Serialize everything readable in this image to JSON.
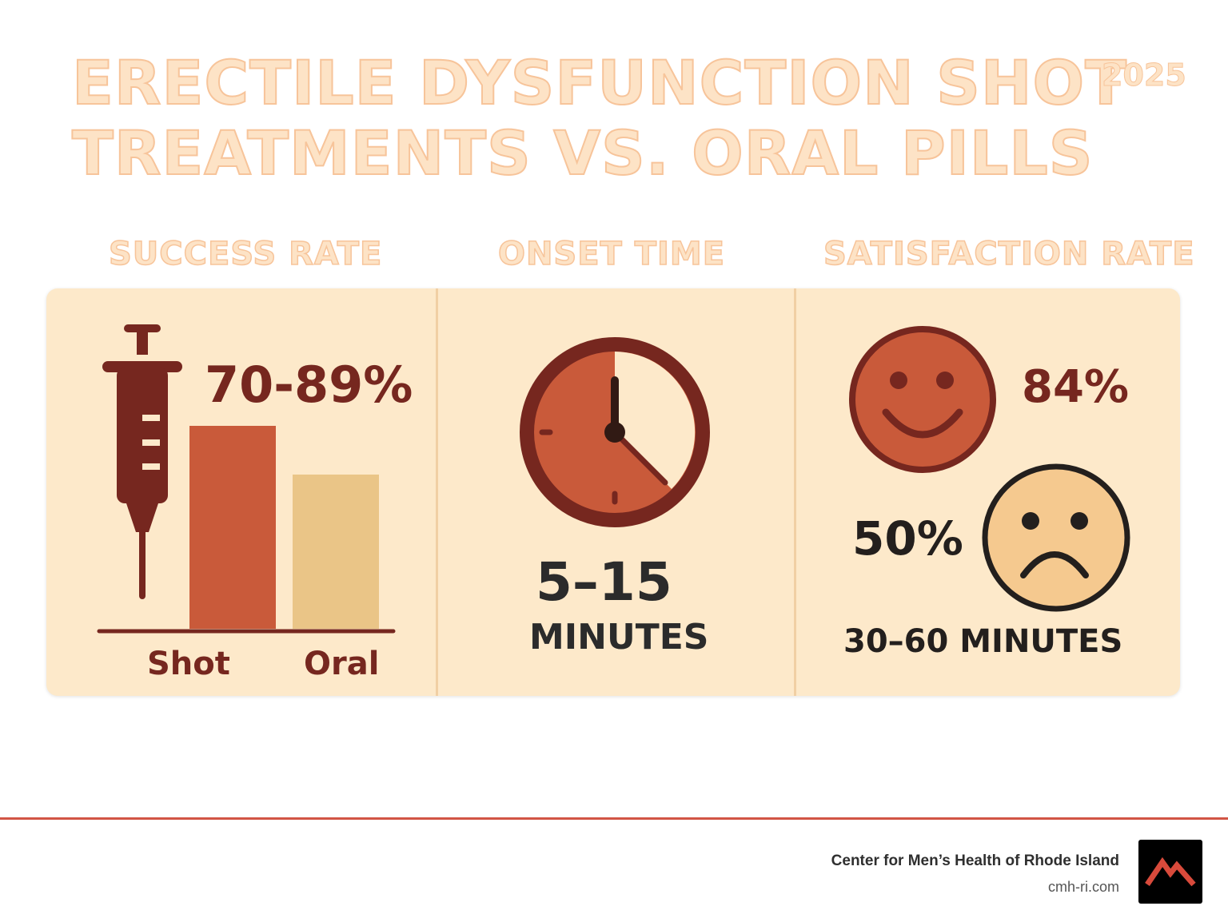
{
  "title": {
    "line1": "ERECTILE DYSFUNCTION SHOT",
    "line2": "TREATMENTS VS. ORAL PILLS",
    "year": "2025"
  },
  "sections": {
    "success": {
      "heading": "SUCCESS RATE",
      "value": "70-89%",
      "bars": [
        {
          "label": "Shot",
          "level": 1.0,
          "color": "#c95a3a"
        },
        {
          "label": "Oral",
          "level": 0.76,
          "color": "#eac587"
        }
      ]
    },
    "onset": {
      "heading": "ONSET TIME",
      "value": "5–15",
      "unit": "MINUTES",
      "icon": "clock-icon"
    },
    "satisfaction": {
      "heading": "SATISFACTION RATE",
      "happy_value": "84%",
      "sad_value": "50%",
      "oral_onset": "30–60 MINUTES",
      "icons": [
        "happy-face-icon",
        "sad-face-icon"
      ]
    }
  },
  "footer": {
    "organization": "Center for Men’s Health of Rhode Island",
    "url": "cmh-ri.com"
  },
  "colors": {
    "dark_brown": "#76271f",
    "orange": "#c95a3a",
    "tan": "#eac587",
    "panel": "#fde9ca",
    "accent_red": "#d25545"
  }
}
